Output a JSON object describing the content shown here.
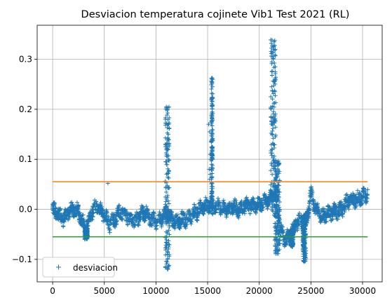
{
  "chart_data": {
    "type": "scatter",
    "title": "Desviacion temperatura cojinete Vib1 Test 2021 (RL)",
    "xlabel": "",
    "ylabel": "",
    "xlim": [
      -1500,
      31900
    ],
    "ylim": [
      -0.145,
      0.368
    ],
    "x_ticks": [
      0,
      5000,
      10000,
      15000,
      20000,
      25000,
      30000
    ],
    "y_ticks": [
      -0.1,
      0.0,
      0.1,
      0.2,
      0.3
    ],
    "y_tick_labels": [
      "−0.1",
      "0.0",
      "0.1",
      "0.2",
      "0.3"
    ],
    "grid": true,
    "legend": {
      "position": "lower-left",
      "entries": [
        "desviacion"
      ]
    },
    "series": [
      {
        "name": "desviacion",
        "marker": "+",
        "color": "#1f77b4",
        "baseline_x": [
          0,
          500,
          1000,
          1500,
          2000,
          2500,
          3000,
          3200,
          3500,
          4000,
          4500,
          5000,
          5500,
          6000,
          6500,
          7000,
          7500,
          8000,
          8500,
          9000,
          9500,
          10000,
          10500,
          11000,
          11500,
          12000,
          12500,
          13000,
          13500,
          14000,
          14500,
          15000,
          15500,
          16000,
          16500,
          17000,
          17500,
          18000,
          18500,
          19000,
          19500,
          20000,
          20500,
          21000,
          21500,
          22000,
          22500,
          23000,
          23500,
          24000,
          24500,
          25000,
          25500,
          26000,
          26500,
          27000,
          27500,
          28000,
          28500,
          29000,
          29500,
          30000,
          30500
        ],
        "baseline_y": [
          0.0,
          -0.01,
          -0.02,
          -0.005,
          0.0,
          -0.005,
          -0.03,
          -0.045,
          -0.02,
          0.005,
          0.0,
          -0.01,
          -0.03,
          -0.02,
          -0.005,
          -0.01,
          -0.02,
          -0.025,
          -0.01,
          -0.005,
          -0.02,
          -0.025,
          -0.02,
          -0.01,
          -0.02,
          -0.025,
          -0.02,
          -0.02,
          -0.01,
          -0.005,
          0.005,
          0.01,
          0.01,
          0.005,
          0.0,
          0.0,
          0.005,
          0.0,
          0.005,
          0.01,
          0.005,
          0.01,
          0.015,
          0.02,
          0.03,
          -0.04,
          -0.06,
          -0.05,
          -0.03,
          -0.02,
          -0.03,
          0.03,
          0.0,
          -0.015,
          -0.01,
          -0.005,
          -0.005,
          0.0,
          0.015,
          0.02,
          0.02,
          0.025,
          0.03
        ],
        "band_amplitude": 0.012,
        "spikes": [
          {
            "x_start": 10900,
            "x_end": 11300,
            "ymin": -0.12,
            "ymax": 0.205
          },
          {
            "x_start": 15350,
            "x_end": 15500,
            "ymin": -0.01,
            "ymax": 0.265
          },
          {
            "x_start": 21100,
            "x_end": 21600,
            "ymin": -0.02,
            "ymax": 0.345
          },
          {
            "x_start": 21500,
            "x_end": 22000,
            "ymin": -0.09,
            "ymax": 0.1
          },
          {
            "x_start": 23000,
            "x_end": 23300,
            "ymin": -0.075,
            "ymax": -0.04
          },
          {
            "x_start": 24200,
            "x_end": 24500,
            "ymin": -0.105,
            "ymax": -0.01
          },
          {
            "x_start": 3100,
            "x_end": 3400,
            "ymin": -0.06,
            "ymax": -0.035
          }
        ],
        "outliers": [
          [
            5350,
            0.052
          ],
          [
            15100,
            0.17
          ],
          [
            15200,
            0.155
          ],
          [
            15250,
            0.11
          ],
          [
            15300,
            0.1
          ],
          [
            15150,
            0.08
          ],
          [
            15250,
            0.07
          ],
          [
            15200,
            0.06
          ]
        ]
      },
      {
        "name": "",
        "type": "line",
        "color": "#ff7f0e",
        "x": [
          0,
          30500
        ],
        "y": [
          0.055,
          0.055
        ]
      },
      {
        "name": "",
        "type": "line",
        "color": "#2ca02c",
        "x": [
          0,
          30500
        ],
        "y": [
          -0.055,
          -0.055
        ]
      }
    ]
  }
}
